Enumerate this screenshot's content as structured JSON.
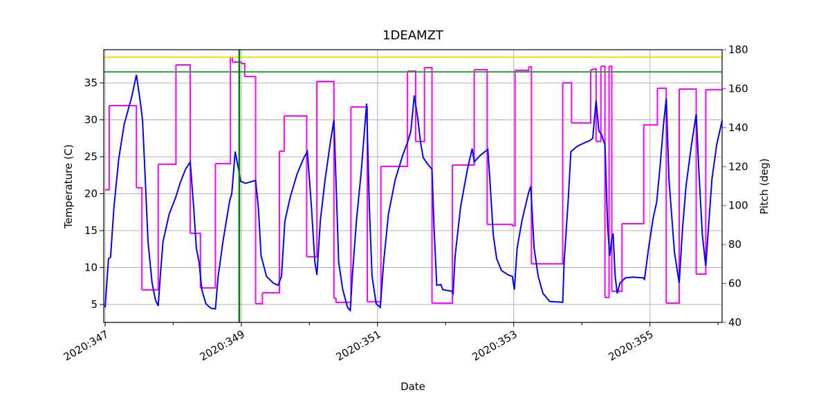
{
  "chart_data": {
    "type": "line",
    "title": "1DEAMZT",
    "xlabel": "Date",
    "ylabel": "Temperature (C)",
    "y2label": "Pitch (deg)",
    "y2color": "#ff00ff",
    "grid": true,
    "xlim": [
      346.98,
      356.06
    ],
    "ylim": [
      2.57,
      39.5
    ],
    "y2lim": [
      40,
      180
    ],
    "xticks": [
      {
        "value": 347,
        "label": "2020:347"
      },
      {
        "value": 349,
        "label": "2020:349"
      },
      {
        "value": 351,
        "label": "2020:351"
      },
      {
        "value": 353,
        "label": "2020:353"
      },
      {
        "value": 355,
        "label": "2020:355"
      }
    ],
    "xminorticks": [
      348,
      350,
      352,
      354,
      356
    ],
    "yticks": [
      5,
      10,
      15,
      20,
      25,
      30,
      35
    ],
    "y2ticks": [
      40,
      60,
      80,
      100,
      120,
      140,
      160,
      180
    ],
    "hlines": [
      {
        "y": 38.5,
        "color": "#ffd700"
      },
      {
        "y": 36.5,
        "color": "#2ca02c"
      }
    ],
    "vlines": [
      {
        "x": 348.97,
        "color": "#008000"
      }
    ],
    "series": [
      {
        "color": "#ff00ff",
        "axis": "y2",
        "step": true,
        "x": [
          347.0,
          347.06,
          347.46,
          347.54,
          347.78,
          348.04,
          348.25,
          348.4,
          348.62,
          348.84,
          348.87,
          349.0,
          349.05,
          349.21,
          349.31,
          349.56,
          349.63,
          349.96,
          350.11,
          350.36,
          350.39,
          350.61,
          350.85,
          351.05,
          351.44,
          351.56,
          351.69,
          351.8,
          352.1,
          352.42,
          352.61,
          352.98,
          353.02,
          353.22,
          353.26,
          353.72,
          353.85,
          354.13,
          354.16,
          354.21,
          354.28,
          354.34,
          354.4,
          354.44,
          354.59,
          354.91,
          355.11,
          355.24,
          355.43,
          355.68,
          355.82
        ],
        "values": [
          108.1,
          151.3,
          109.1,
          56.7,
          121.2,
          172.2,
          85.7,
          57.7,
          121.5,
          176.1,
          173.6,
          172.9,
          166.2,
          49.6,
          55.2,
          127.9,
          146.0,
          73.7,
          163.7,
          52.4,
          50.3,
          150.6,
          50.6,
          120.1,
          169.0,
          132.9,
          170.8,
          49.9,
          120.8,
          169.7,
          90.3,
          89.6,
          169.4,
          171.2,
          70.1,
          163.0,
          142.4,
          169.7,
          170.1,
          132.9,
          171.5,
          52.8,
          171.5,
          56.0,
          90.7,
          141.4,
          160.2,
          49.9,
          159.8,
          64.8,
          159.5
        ]
      },
      {
        "color": "#0000ff",
        "x": [
          347.0,
          347.05,
          347.08,
          347.13,
          347.2,
          347.28,
          347.39,
          347.46,
          347.52,
          347.55,
          347.59,
          347.63,
          347.69,
          347.74,
          347.78,
          347.81,
          347.85,
          347.94,
          348.04,
          348.1,
          348.18,
          348.25,
          348.3,
          348.34,
          348.38,
          348.42,
          348.48,
          348.55,
          348.62,
          348.66,
          348.73,
          348.83,
          348.86,
          348.91,
          348.96,
          348.99,
          349.06,
          349.21,
          349.25,
          349.29,
          349.37,
          349.47,
          349.54,
          349.59,
          349.64,
          349.72,
          349.82,
          349.92,
          349.97,
          350.03,
          350.08,
          350.11,
          350.16,
          350.23,
          350.31,
          350.36,
          350.4,
          350.43,
          350.49,
          350.56,
          350.6,
          350.63,
          350.69,
          350.76,
          350.84,
          350.88,
          350.92,
          350.98,
          351.04,
          351.09,
          351.16,
          351.26,
          351.37,
          351.45,
          351.49,
          351.54,
          351.59,
          351.63,
          351.67,
          351.73,
          351.8,
          351.83,
          351.87,
          351.93,
          351.96,
          352.09,
          352.11,
          352.14,
          352.22,
          352.32,
          352.39,
          352.42,
          352.51,
          352.62,
          352.65,
          352.7,
          352.75,
          352.82,
          352.92,
          352.98,
          353.01,
          353.05,
          353.12,
          353.22,
          353.25,
          353.3,
          353.36,
          353.43,
          353.53,
          353.72,
          353.74,
          353.8,
          353.84,
          353.93,
          354.04,
          354.12,
          354.16,
          354.21,
          354.25,
          354.29,
          354.34,
          354.38,
          354.41,
          354.44,
          354.46,
          354.49,
          354.52,
          354.56,
          354.64,
          354.75,
          354.9,
          354.92,
          354.98,
          355.05,
          355.1,
          355.15,
          355.2,
          355.24,
          355.28,
          355.36,
          355.43,
          355.48,
          355.53,
          355.61,
          355.68,
          355.72,
          355.77,
          355.82,
          355.86,
          355.91,
          355.98,
          356.06
        ],
        "values": [
          4.6,
          11.2,
          11.4,
          18.2,
          24.7,
          29.4,
          33.1,
          36.1,
          32.2,
          29.9,
          21.9,
          13.5,
          7.9,
          5.6,
          4.8,
          8.8,
          13.5,
          17.2,
          19.6,
          21.4,
          23.3,
          24.3,
          18.2,
          12.6,
          10.7,
          7.0,
          5.1,
          4.5,
          4.4,
          8.8,
          13.5,
          19.1,
          20.0,
          25.7,
          23.3,
          21.7,
          21.4,
          21.8,
          18.2,
          11.6,
          8.8,
          7.9,
          7.6,
          8.8,
          16.3,
          19.6,
          22.7,
          24.9,
          25.7,
          18.2,
          10.7,
          9.0,
          16.3,
          21.9,
          27.1,
          30.0,
          19.1,
          10.7,
          7.0,
          4.6,
          4.2,
          8.8,
          16.3,
          22.9,
          32.2,
          18.2,
          8.8,
          5.1,
          4.6,
          10.7,
          17.2,
          21.9,
          25.2,
          27.2,
          28.5,
          33.3,
          30.3,
          27.1,
          24.9,
          24.1,
          23.3,
          15.4,
          7.6,
          7.7,
          7.0,
          6.8,
          6.5,
          11.6,
          18.2,
          23.3,
          26.1,
          24.3,
          25.2,
          26.0,
          21.9,
          14.4,
          11.2,
          9.6,
          9.0,
          8.8,
          7.0,
          12.6,
          16.3,
          20.2,
          21.0,
          12.6,
          8.8,
          6.5,
          5.4,
          5.3,
          10.7,
          19.1,
          25.7,
          26.4,
          26.9,
          27.2,
          27.5,
          32.6,
          28.5,
          28.0,
          26.6,
          15.4,
          11.6,
          14.0,
          14.6,
          8.8,
          6.5,
          7.9,
          8.6,
          8.7,
          8.6,
          8.4,
          12.6,
          16.8,
          18.9,
          23.8,
          29.4,
          32.9,
          21.9,
          12.1,
          7.9,
          15.4,
          21.0,
          26.6,
          30.8,
          22.9,
          14.4,
          10.2,
          15.4,
          21.9,
          26.6,
          29.9
        ]
      }
    ]
  }
}
